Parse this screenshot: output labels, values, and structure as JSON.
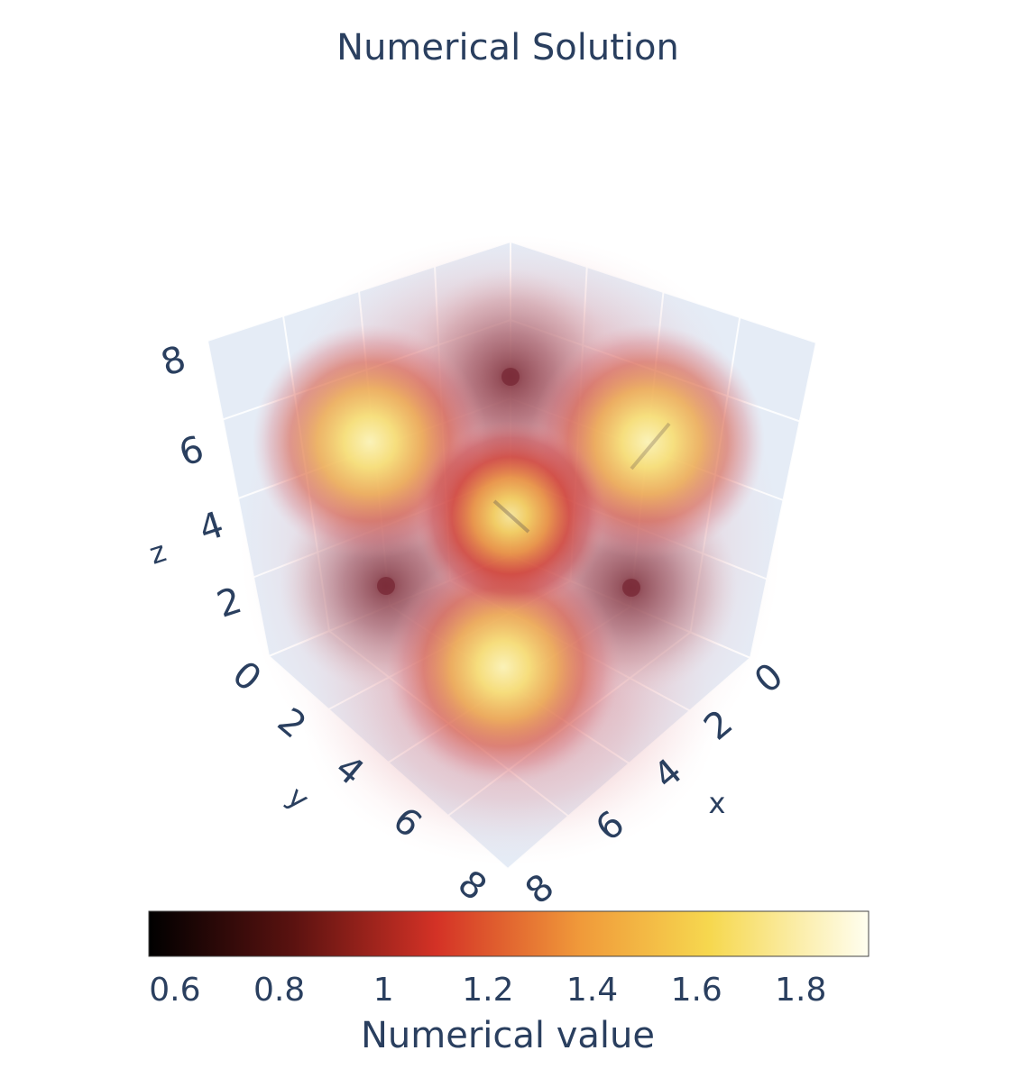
{
  "chart_data": {
    "type": "volume",
    "title": "Numerical Solution",
    "axes": {
      "x": {
        "label": "x",
        "range": [
          0,
          8
        ],
        "ticks": [
          "0",
          "2",
          "4",
          "6",
          "8"
        ]
      },
      "y": {
        "label": "y",
        "range": [
          0,
          8
        ],
        "ticks": [
          "0",
          "2",
          "4",
          "6",
          "8"
        ]
      },
      "z": {
        "label": "z",
        "range": [
          0,
          8
        ],
        "ticks": [
          "2",
          "4",
          "6",
          "8"
        ],
        "origin_tick": "0"
      }
    },
    "grid": true,
    "colorscale": "hot",
    "colorscale_stops": [
      "#000000",
      "#5a1210",
      "#d43226",
      "#f09a3a",
      "#f6d84f",
      "#fffef0"
    ],
    "colorbar": {
      "title": "Numerical value",
      "range": [
        0.55,
        1.93
      ],
      "ticks": [
        0.6,
        0.8,
        1,
        1.2,
        1.4,
        1.6,
        1.8
      ],
      "tick_labels": [
        "0.6",
        "0.8",
        "1",
        "1.2",
        "1.4",
        "1.6",
        "1.8"
      ],
      "placement": "bottom"
    },
    "blobs": [
      {
        "kind": "peak",
        "value": 1.55,
        "location": "upper-left"
      },
      {
        "kind": "peak",
        "value": 1.55,
        "location": "upper-right"
      },
      {
        "kind": "peak",
        "value": 1.5,
        "location": "center"
      },
      {
        "kind": "peak",
        "value": 1.55,
        "location": "bottom"
      },
      {
        "kind": "trough",
        "value": 0.75,
        "location": "top"
      },
      {
        "kind": "trough",
        "value": 0.75,
        "location": "lower-left"
      },
      {
        "kind": "trough",
        "value": 0.75,
        "location": "lower-right"
      }
    ]
  }
}
